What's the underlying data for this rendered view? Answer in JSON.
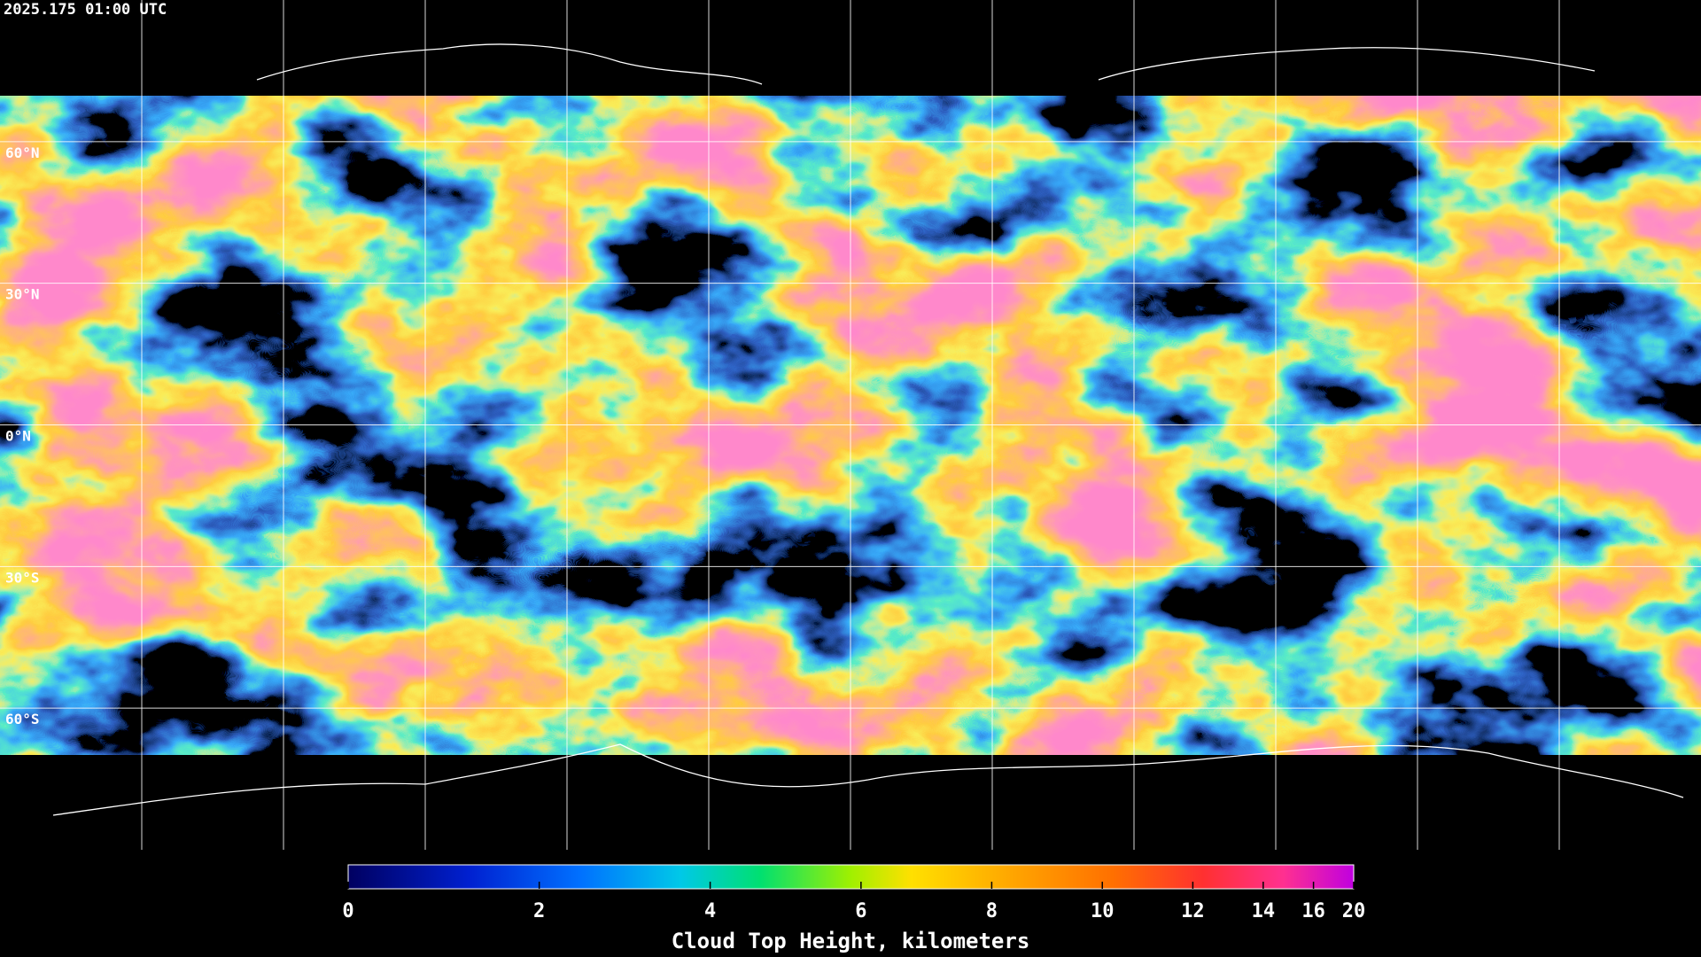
{
  "timestamp": "2025.175 01:00 UTC",
  "graticule": {
    "lat_labels": [
      "60°N",
      "30°N",
      "0°N",
      "30°S",
      "60°S"
    ]
  },
  "colorbar": {
    "label": "Cloud Top Height, kilometers",
    "range": [
      0,
      20
    ],
    "ticks": [
      0,
      2,
      4,
      6,
      8,
      10,
      12,
      14,
      16,
      20
    ]
  }
}
